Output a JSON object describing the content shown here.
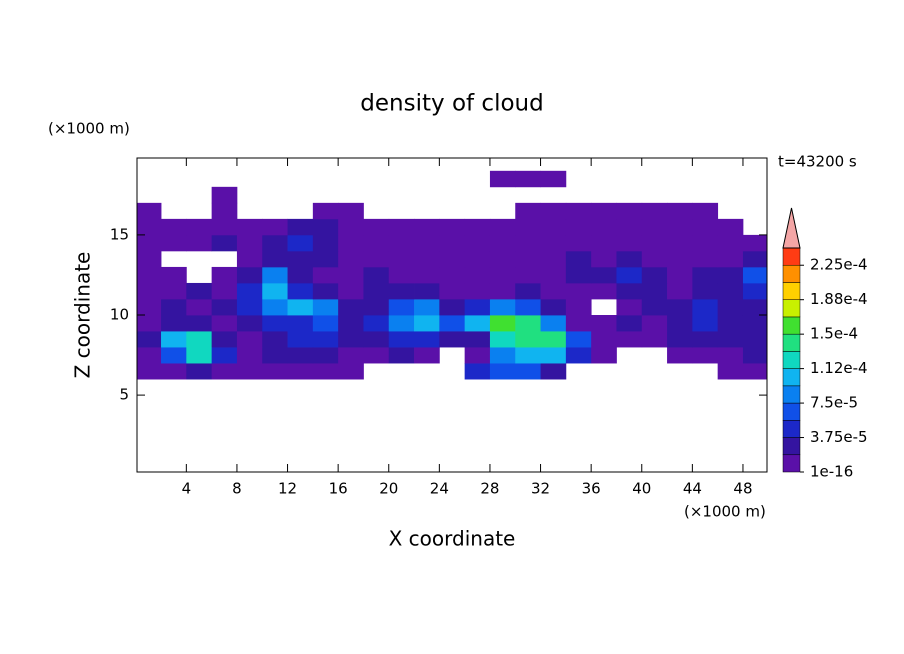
{
  "chart_data": {
    "type": "contour",
    "title": "density of cloud",
    "x_label": "X coordinate",
    "y_label": "Z coordinate",
    "x_unit": "(×1000 m)",
    "y_unit": "(×1000 m)",
    "annotation": "t=43200 s",
    "xlim": [
      0.1,
      49.9
    ],
    "ylim": [
      0.2,
      19.8
    ],
    "xticks": [
      4,
      8,
      12,
      16,
      20,
      24,
      28,
      32,
      36,
      40,
      44,
      48
    ],
    "yticks": [
      5,
      10,
      15
    ],
    "x_edges": [
      0,
      2,
      4,
      6,
      8,
      10,
      12,
      14,
      16,
      18,
      20,
      22,
      24,
      26,
      28,
      30,
      32,
      34,
      36,
      38,
      40,
      42,
      44,
      46,
      48,
      50
    ],
    "z_edges": [
      6,
      7,
      8,
      9,
      10,
      11,
      12,
      13,
      14,
      15,
      16,
      17,
      18,
      19
    ],
    "values": [
      [
        5e-06,
        5e-06,
        2.8e-05,
        5e-06,
        5e-06,
        5e-06,
        5e-06,
        5e-06,
        5e-06,
        null,
        null,
        null,
        null,
        4.6e-05,
        6.5e-05,
        6.5e-05,
        2.8e-05,
        null,
        null,
        null,
        null,
        null,
        null,
        5e-06,
        5e-06
      ],
      [
        5e-06,
        6.5e-05,
        0.000122,
        4.6e-05,
        5e-06,
        2.8e-05,
        2.8e-05,
        2.8e-05,
        5e-06,
        5e-06,
        2.8e-05,
        5e-06,
        null,
        5e-06,
        8.4e-05,
        0.000103,
        0.000103,
        4.6e-05,
        5e-06,
        null,
        null,
        5e-06,
        5e-06,
        5e-06,
        2.8e-05
      ],
      [
        2.8e-05,
        0.000103,
        0.000122,
        2.8e-05,
        5e-06,
        2.8e-05,
        4.6e-05,
        4.6e-05,
        2.8e-05,
        2.8e-05,
        4.6e-05,
        4.6e-05,
        2.8e-05,
        2.8e-05,
        0.000122,
        0.00014,
        0.00014,
        6.5e-05,
        5e-06,
        5e-06,
        5e-06,
        2.8e-05,
        2.8e-05,
        2.8e-05,
        2.8e-05
      ],
      [
        5e-06,
        2.8e-05,
        2.8e-05,
        5e-06,
        2.8e-05,
        4.6e-05,
        4.6e-05,
        6.5e-05,
        2.8e-05,
        4.6e-05,
        8.4e-05,
        0.000103,
        6.5e-05,
        0.000103,
        0.00016,
        0.00014,
        8.4e-05,
        5e-06,
        5e-06,
        2.8e-05,
        5e-06,
        2.8e-05,
        4.6e-05,
        2.8e-05,
        2.8e-05
      ],
      [
        5e-06,
        2.8e-05,
        5e-06,
        2.8e-05,
        4.6e-05,
        8.4e-05,
        0.000103,
        8.4e-05,
        2.8e-05,
        2.8e-05,
        6.5e-05,
        8.4e-05,
        2.8e-05,
        4.6e-05,
        8.4e-05,
        6.5e-05,
        2.8e-05,
        5e-06,
        null,
        5e-06,
        2.8e-05,
        2.8e-05,
        4.6e-05,
        2.8e-05,
        2.8e-05
      ],
      [
        5e-06,
        5e-06,
        2.8e-05,
        5e-06,
        4.6e-05,
        0.000103,
        4.6e-05,
        2.8e-05,
        5e-06,
        2.8e-05,
        2.8e-05,
        2.8e-05,
        5e-06,
        5e-06,
        5e-06,
        2.8e-05,
        5e-06,
        5e-06,
        5e-06,
        2.8e-05,
        2.8e-05,
        5e-06,
        2.8e-05,
        2.8e-05,
        4.6e-05
      ],
      [
        5e-06,
        5e-06,
        null,
        5e-06,
        2.8e-05,
        8.4e-05,
        2.8e-05,
        5e-06,
        5e-06,
        2.8e-05,
        5e-06,
        5e-06,
        5e-06,
        5e-06,
        5e-06,
        5e-06,
        5e-06,
        2.8e-05,
        2.8e-05,
        4.6e-05,
        2.8e-05,
        5e-06,
        2.8e-05,
        2.8e-05,
        6.5e-05
      ],
      [
        5e-06,
        null,
        null,
        null,
        5e-06,
        2.8e-05,
        2.8e-05,
        2.8e-05,
        5e-06,
        5e-06,
        5e-06,
        5e-06,
        5e-06,
        5e-06,
        5e-06,
        5e-06,
        5e-06,
        2.8e-05,
        5e-06,
        2.8e-05,
        5e-06,
        5e-06,
        5e-06,
        5e-06,
        2.8e-05
      ],
      [
        5e-06,
        5e-06,
        5e-06,
        2.8e-05,
        5e-06,
        2.8e-05,
        4.6e-05,
        2.8e-05,
        5e-06,
        5e-06,
        5e-06,
        5e-06,
        5e-06,
        5e-06,
        5e-06,
        5e-06,
        5e-06,
        5e-06,
        5e-06,
        5e-06,
        5e-06,
        5e-06,
        5e-06,
        5e-06,
        5e-06
      ],
      [
        5e-06,
        5e-06,
        5e-06,
        5e-06,
        5e-06,
        5e-06,
        2.8e-05,
        2.8e-05,
        5e-06,
        5e-06,
        5e-06,
        5e-06,
        5e-06,
        5e-06,
        5e-06,
        5e-06,
        5e-06,
        5e-06,
        5e-06,
        5e-06,
        5e-06,
        5e-06,
        5e-06,
        5e-06,
        null
      ],
      [
        5e-06,
        null,
        null,
        5e-06,
        null,
        null,
        null,
        5e-06,
        5e-06,
        null,
        null,
        null,
        null,
        null,
        null,
        5e-06,
        5e-06,
        5e-06,
        5e-06,
        5e-06,
        5e-06,
        5e-06,
        5e-06,
        null,
        null
      ],
      [
        null,
        null,
        null,
        5e-06,
        null,
        null,
        null,
        null,
        null,
        null,
        null,
        null,
        null,
        null,
        null,
        null,
        null,
        null,
        null,
        null,
        null,
        null,
        null,
        null,
        null
      ],
      [
        null,
        null,
        null,
        null,
        null,
        null,
        null,
        null,
        null,
        null,
        null,
        null,
        null,
        null,
        5e-06,
        5e-06,
        5e-06,
        null,
        null,
        null,
        null,
        null,
        null,
        null,
        null
      ]
    ],
    "colorbar": {
      "levels": [
        1e-16,
        1.875e-05,
        3.75e-05,
        5.625e-05,
        7.5e-05,
        9.375e-05,
        0.0001125,
        0.00013125,
        0.00015,
        0.00016875,
        0.0001875,
        0.00020625,
        0.000225,
        0.00024375
      ],
      "colors": [
        "#5a10a8",
        "#3414a0",
        "#1c28c8",
        "#1050e8",
        "#0a80f0",
        "#10b4f0",
        "#10d8c0",
        "#20e080",
        "#40e030",
        "#c8f000",
        "#ffd000",
        "#ff9000",
        "#ff3c14"
      ],
      "over_color": "#f4a6a6",
      "ticks": [
        {
          "value": 1e-16,
          "label": "1e-16"
        },
        {
          "value": 3.75e-05,
          "label": "3.75e-5"
        },
        {
          "value": 7.5e-05,
          "label": "7.5e-5"
        },
        {
          "value": 0.0001125,
          "label": "1.12e-4"
        },
        {
          "value": 0.00015,
          "label": "1.5e-4"
        },
        {
          "value": 0.0001875,
          "label": "1.88e-4"
        },
        {
          "value": 0.000225,
          "label": "2.25e-4"
        }
      ]
    }
  }
}
